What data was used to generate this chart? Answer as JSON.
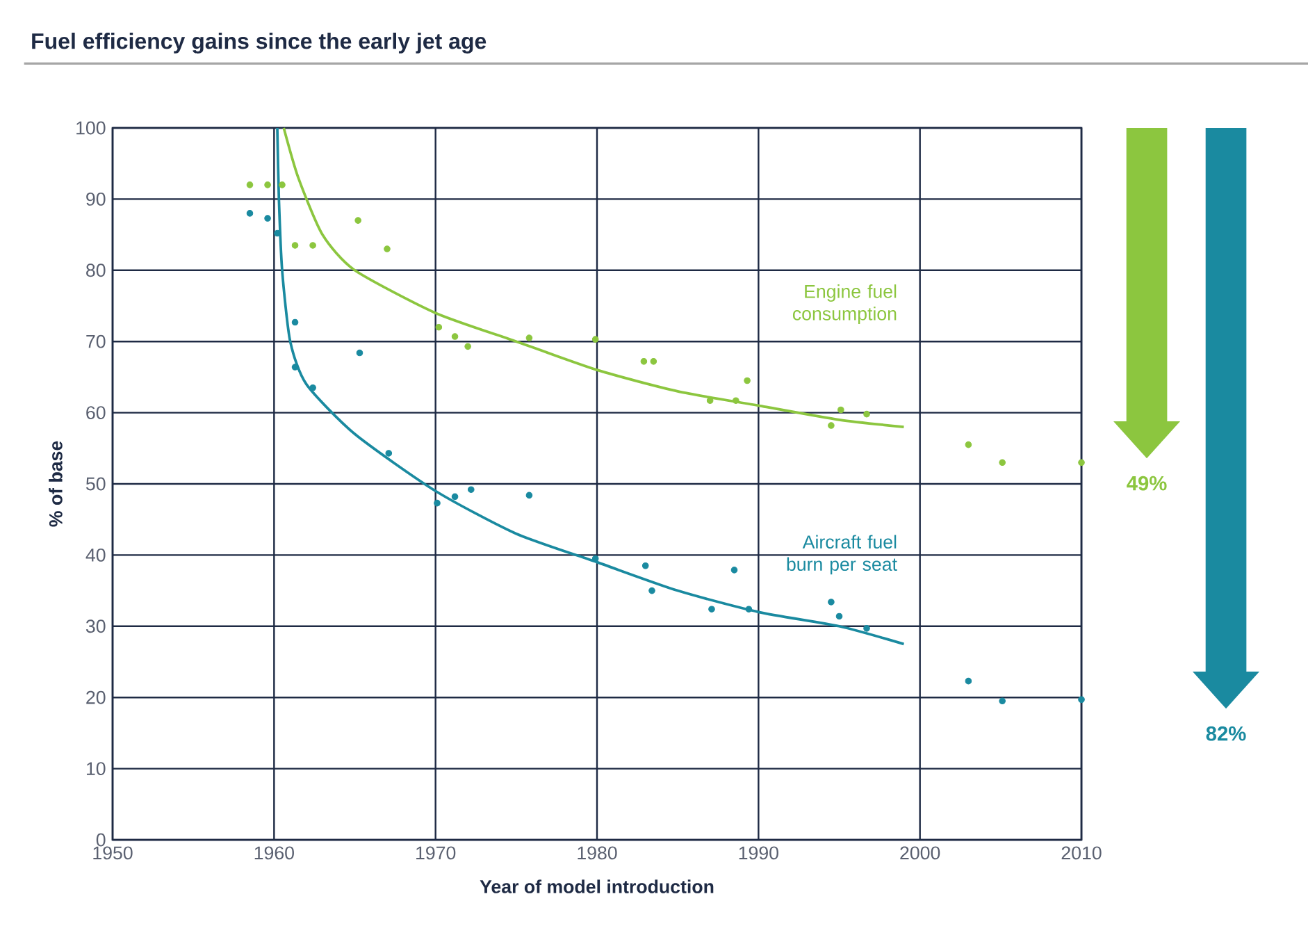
{
  "chart_data": {
    "type": "scatter",
    "title": "Fuel efficiency gains since the early jet age",
    "xlabel": "Year of model introduction",
    "ylabel": "% of base",
    "xlim": [
      1950,
      2010
    ],
    "xticks": [
      1950,
      1960,
      1970,
      1980,
      1990,
      2000,
      2010
    ],
    "ylim": [
      0,
      100
    ],
    "yticks": [
      0,
      10,
      20,
      30,
      40,
      50,
      60,
      70,
      80,
      90,
      100
    ],
    "grid": true,
    "marker": "circle",
    "annotations": [
      "49%",
      "82%"
    ],
    "series": [
      {
        "color": "#8cc63f",
        "x": [
          1958.5,
          1959.6,
          1960.5,
          1961.3,
          1962.4,
          1965.2,
          1967.0,
          1970.2,
          1971.2,
          1972.0,
          1975.8,
          1979.9,
          1982.9,
          1983.5,
          1987.0,
          1988.6,
          1989.3,
          1994.5,
          1995.1,
          1996.7,
          2003.0,
          2005.1,
          2010.0
        ],
        "values": [
          92,
          92,
          92,
          83.5,
          83.5,
          87,
          83,
          72,
          70.7,
          69.3,
          70.5,
          70.3,
          67.2,
          67.2,
          61.7,
          61.7,
          64.5,
          58.2,
          60.4,
          59.8,
          55.5,
          53,
          53
        ]
      },
      {
        "color": "#1a8aa0",
        "x": [
          1958.5,
          1959.6,
          1960.2,
          1961.3,
          1961.3,
          1962.4,
          1965.3,
          1967.1,
          1970.1,
          1971.2,
          1972.2,
          1975.8,
          1979.9,
          1983.0,
          1983.4,
          1987.1,
          1988.5,
          1989.4,
          1994.5,
          1995.0,
          1996.7,
          2003.0,
          2005.1,
          2010.0
        ],
        "values": [
          88,
          87.3,
          85.2,
          72.7,
          66.4,
          63.5,
          68.4,
          54.3,
          47.3,
          48.2,
          49.2,
          48.4,
          39.5,
          38.5,
          35,
          32.4,
          37.9,
          32.4,
          33.4,
          31.4,
          29.7,
          22.3,
          19.5,
          19.7
        ]
      },
      {
        "type": "line",
        "name": "Engine fuel consumption",
        "color": "#8cc63f",
        "marker": "none",
        "x": [
          1960.6,
          1961.5,
          1963,
          1965,
          1970,
          1975,
          1980,
          1985,
          1990,
          1995,
          1999
        ],
        "values": [
          100,
          93,
          85,
          80,
          74,
          70,
          66,
          63,
          61,
          59,
          58
        ]
      },
      {
        "type": "line",
        "name": "Aircraft fuel burn per seat",
        "color": "#1a8aa0",
        "marker": "none",
        "x": [
          1960.2,
          1960.3,
          1960.5,
          1961,
          1962,
          1965,
          1970,
          1975,
          1980,
          1985,
          1990,
          1995,
          1999
        ],
        "values": [
          100,
          90,
          80,
          70,
          64,
          57,
          49,
          43,
          39,
          35,
          32,
          30,
          27.5
        ]
      }
    ]
  }
}
